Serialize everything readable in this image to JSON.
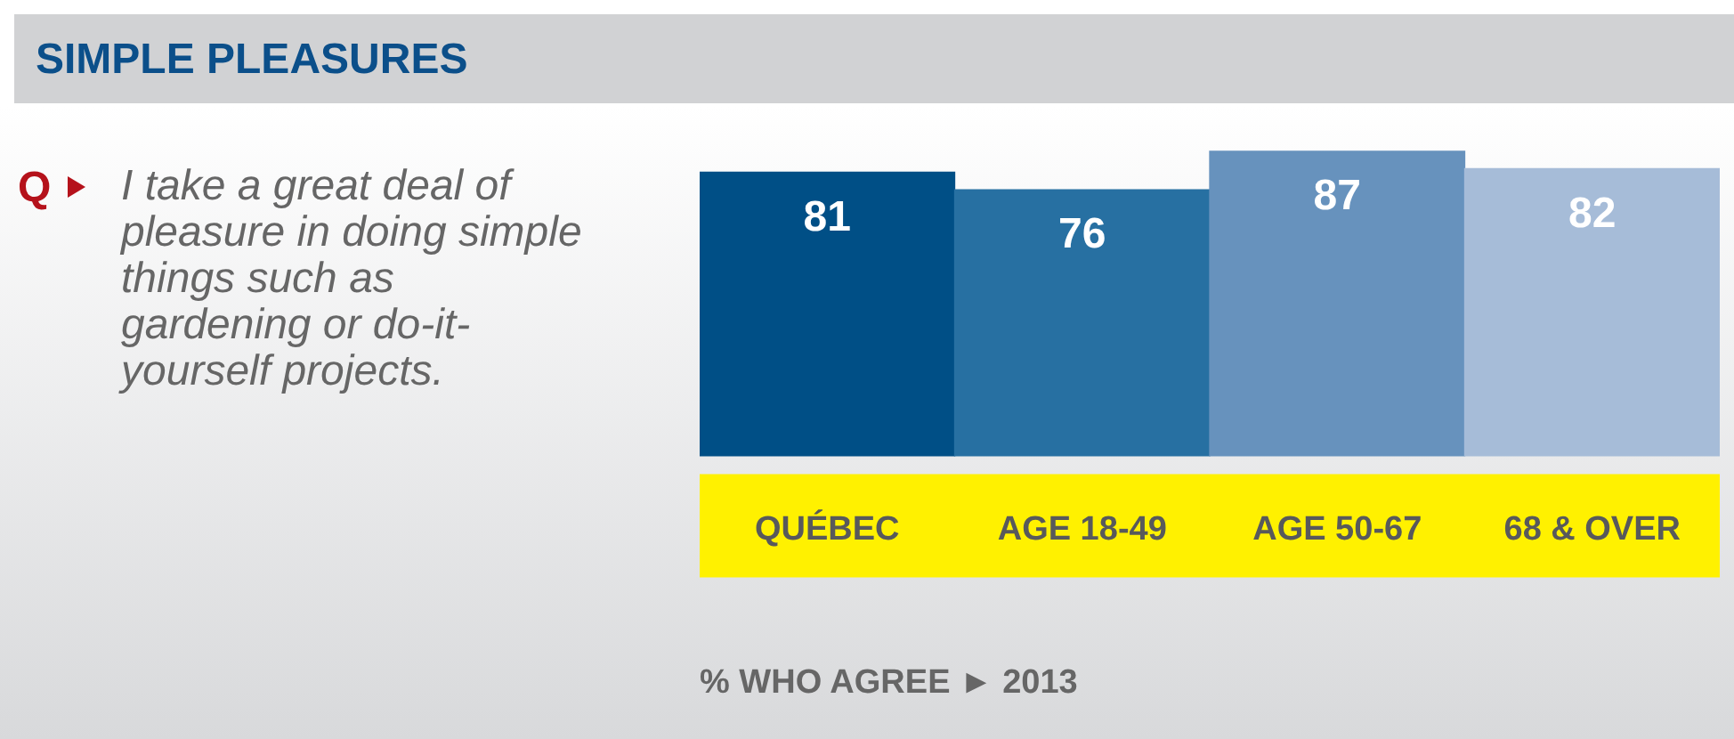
{
  "chart_data": {
    "type": "bar",
    "title": "SIMPLE PLEASURES",
    "subtitle": "I take a great deal of pleasure in doing simple things such as gardening or do-it-yourself projects.",
    "annotations": [
      "Q",
      "% WHO AGREE ► 2013"
    ],
    "categories": [
      "QUÉBEC",
      "AGE 18-49",
      "AGE 50-67",
      "68 & OVER"
    ],
    "values": [
      81,
      76,
      87,
      82
    ],
    "colors": [
      "#004f86",
      "#2770a2",
      "#6792bd",
      "#a6bcd8"
    ],
    "tick_labels": "x",
    "grid": false,
    "legend": false,
    "data_labels": true
  }
}
